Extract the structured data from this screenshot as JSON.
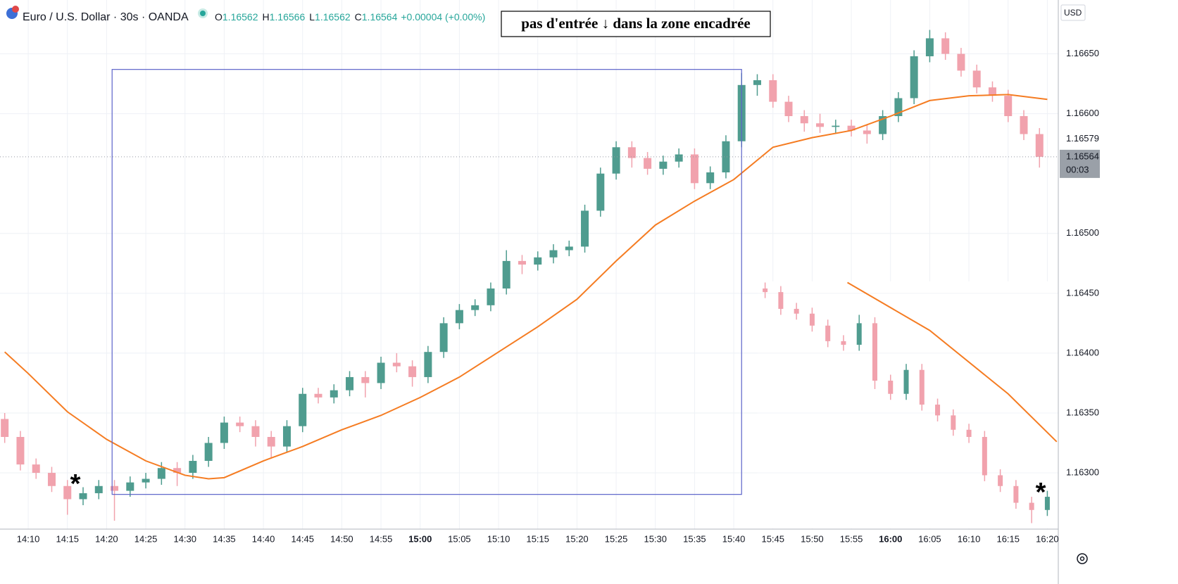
{
  "chart_data": {
    "type": "candlestick",
    "header": {
      "symbol": "Euro / U.S. Dollar · 30s · OANDA",
      "ohlc": [
        {
          "key": "O",
          "value": "1.16562"
        },
        {
          "key": "H",
          "value": "1.16566"
        },
        {
          "key": "L",
          "value": "1.16562"
        },
        {
          "key": "C",
          "value": "1.16564"
        }
      ],
      "change": "+0.00004 (+0.00%)"
    },
    "annotation": "pas d'entrée ↓ dans la zone encadrée",
    "markers": [
      "*",
      "*"
    ],
    "currency": "USD",
    "up_color": "#4f9c8f",
    "down_color": "#f1a2ad",
    "box_color": "#5b63c9",
    "zone": {
      "x": [
        860.7,
        941
      ],
      "y": [
        1.16282,
        1.16637
      ]
    },
    "xlim": [
      846.4,
      981.4
    ],
    "ylim": [
      1.16253,
      1.16695
    ],
    "xticks": [
      {
        "value": 850,
        "label": "14:10"
      },
      {
        "value": 855,
        "label": "14:15"
      },
      {
        "value": 860,
        "label": "14:20"
      },
      {
        "value": 865,
        "label": "14:25"
      },
      {
        "value": 870,
        "label": "14:30"
      },
      {
        "value": 875,
        "label": "14:35"
      },
      {
        "value": 880,
        "label": "14:40"
      },
      {
        "value": 885,
        "label": "14:45"
      },
      {
        "value": 890,
        "label": "14:50"
      },
      {
        "value": 895,
        "label": "14:55"
      },
      {
        "value": 900,
        "label": "15:00"
      },
      {
        "value": 905,
        "label": "15:05"
      },
      {
        "value": 910,
        "label": "15:10"
      },
      {
        "value": 915,
        "label": "15:15"
      },
      {
        "value": 920,
        "label": "15:20"
      },
      {
        "value": 925,
        "label": "15:25"
      },
      {
        "value": 930,
        "label": "15:30"
      },
      {
        "value": 935,
        "label": "15:35"
      },
      {
        "value": 940,
        "label": "15:40"
      },
      {
        "value": 945,
        "label": "15:45"
      },
      {
        "value": 950,
        "label": "15:50"
      },
      {
        "value": 955,
        "label": "15:55"
      },
      {
        "value": 960,
        "label": "16:00"
      },
      {
        "value": 965,
        "label": "16:05"
      },
      {
        "value": 970,
        "label": "16:10"
      },
      {
        "value": 975,
        "label": "16:15"
      },
      {
        "value": 980,
        "label": "16:20"
      }
    ],
    "bold_xticks": [
      10,
      22
    ],
    "yticks": [
      {
        "value": 1.163,
        "label": "1.16300"
      },
      {
        "value": 1.1635,
        "label": "1.16350"
      },
      {
        "value": 1.164,
        "label": "1.16400"
      },
      {
        "value": 1.1645,
        "label": "1.16450"
      },
      {
        "value": 1.165,
        "label": "1.16500"
      },
      {
        "value": 1.166,
        "label": "1.16600"
      },
      {
        "value": 1.1665,
        "label": "1.16650"
      }
    ],
    "grid": true,
    "last_price": {
      "value": 1.16564,
      "label": "1.16564",
      "countdown": "00:03"
    },
    "marker_price": {
      "value": 1.16579,
      "label": "1.16579",
      "color": "#f5a3bd"
    },
    "x": [
      847,
      849,
      851,
      853,
      855,
      857,
      859,
      861,
      863,
      865,
      867,
      869,
      871,
      873,
      875,
      877,
      879,
      881,
      883,
      885,
      887,
      889,
      891,
      893,
      895,
      897,
      899,
      901,
      903,
      905,
      907,
      909,
      911,
      913,
      915,
      917,
      919,
      921,
      923,
      925,
      927,
      929,
      931,
      933,
      935,
      937,
      939,
      941,
      943,
      945,
      947,
      949,
      951,
      953,
      955,
      957,
      959,
      961,
      963,
      965,
      967,
      969,
      971,
      973,
      975,
      977,
      979
    ],
    "open": [
      1.16345,
      1.1633,
      1.16307,
      1.163,
      1.16289,
      1.16278,
      1.16283,
      1.16289,
      1.16285,
      1.16292,
      1.16295,
      1.16304,
      1.163,
      1.1631,
      1.16325,
      1.16342,
      1.16339,
      1.1633,
      1.16322,
      1.16339,
      1.16366,
      1.16363,
      1.16369,
      1.1638,
      1.16375,
      1.16392,
      1.16389,
      1.1638,
      1.16401,
      1.16425,
      1.16436,
      1.1644,
      1.16454,
      1.16477,
      1.16474,
      1.1648,
      1.16486,
      1.16489,
      1.16519,
      1.1655,
      1.16572,
      1.16563,
      1.16554,
      1.1656,
      1.16566,
      1.16542,
      1.16551,
      1.16577,
      1.16624,
      1.16628,
      1.1661,
      1.16598,
      1.16592,
      1.16589,
      1.1659,
      1.16586,
      1.16583,
      1.16598,
      1.16613,
      1.16648,
      1.16663,
      1.1665,
      1.16636,
      1.16622,
      1.16615,
      1.16598,
      1.16583
    ],
    "high": [
      1.1635,
      1.16335,
      1.16312,
      1.16305,
      1.16294,
      1.16288,
      1.16294,
      1.16294,
      1.16297,
      1.163,
      1.16309,
      1.16309,
      1.16315,
      1.1633,
      1.16347,
      1.16347,
      1.16344,
      1.16335,
      1.16344,
      1.16371,
      1.16371,
      1.16374,
      1.16385,
      1.16385,
      1.16397,
      1.164,
      1.16394,
      1.16406,
      1.1643,
      1.16441,
      1.16445,
      1.16459,
      1.16486,
      1.16482,
      1.16485,
      1.16491,
      1.16494,
      1.16524,
      1.16555,
      1.16577,
      1.16577,
      1.16568,
      1.16565,
      1.16571,
      1.16571,
      1.16556,
      1.16582,
      1.16634,
      1.16633,
      1.16633,
      1.16615,
      1.16603,
      1.166,
      1.16595,
      1.16595,
      1.16591,
      1.16603,
      1.16618,
      1.16653,
      1.1667,
      1.16668,
      1.16655,
      1.16641,
      1.16627,
      1.1662,
      1.16603,
      1.16588
    ],
    "low": [
      1.16325,
      1.16302,
      1.16295,
      1.16284,
      1.16265,
      1.16273,
      1.16278,
      1.1626,
      1.1628,
      1.16287,
      1.1629,
      1.16289,
      1.16295,
      1.16305,
      1.1632,
      1.16334,
      1.16322,
      1.16312,
      1.16317,
      1.16334,
      1.16358,
      1.16358,
      1.16364,
      1.16363,
      1.1637,
      1.16384,
      1.16372,
      1.16375,
      1.16396,
      1.1642,
      1.16431,
      1.16435,
      1.16449,
      1.16466,
      1.16469,
      1.16475,
      1.16481,
      1.16484,
      1.16514,
      1.16545,
      1.16555,
      1.16549,
      1.16549,
      1.16555,
      1.16537,
      1.16537,
      1.16546,
      1.16572,
      1.16615,
      1.16605,
      1.16593,
      1.16585,
      1.16584,
      1.16584,
      1.16581,
      1.16575,
      1.16578,
      1.16593,
      1.16608,
      1.16643,
      1.16645,
      1.16631,
      1.16617,
      1.1661,
      1.16593,
      1.16578,
      1.16555
    ],
    "close": [
      1.1633,
      1.16307,
      1.163,
      1.16289,
      1.16278,
      1.16283,
      1.16289,
      1.16285,
      1.16292,
      1.16295,
      1.16304,
      1.163,
      1.1631,
      1.16325,
      1.16342,
      1.16339,
      1.1633,
      1.16322,
      1.16339,
      1.16366,
      1.16363,
      1.16369,
      1.1638,
      1.16375,
      1.16392,
      1.16389,
      1.1638,
      1.16401,
      1.16425,
      1.16436,
      1.1644,
      1.16454,
      1.16477,
      1.16474,
      1.1648,
      1.16486,
      1.16489,
      1.16519,
      1.1655,
      1.16572,
      1.16563,
      1.16554,
      1.1656,
      1.16566,
      1.16542,
      1.16551,
      1.16577,
      1.16624,
      1.16628,
      1.1661,
      1.16598,
      1.16592,
      1.16589,
      1.1659,
      1.16586,
      1.16583,
      1.16598,
      1.16613,
      1.16648,
      1.16663,
      1.1665,
      1.16636,
      1.16622,
      1.16615,
      1.16598,
      1.16583,
      1.16564
    ],
    "ma": {
      "color": "#f57c22",
      "x": [
        847,
        850,
        855,
        860,
        865,
        870,
        873,
        875,
        880,
        885,
        890,
        895,
        900,
        905,
        910,
        915,
        920,
        925,
        930,
        935,
        940,
        945,
        950,
        955,
        960,
        965,
        970,
        975,
        980
      ],
      "values": [
        1.16401,
        1.16383,
        1.16351,
        1.16328,
        1.1631,
        1.16298,
        1.16295,
        1.16296,
        1.1631,
        1.16322,
        1.16336,
        1.16348,
        1.16363,
        1.1638,
        1.16401,
        1.16422,
        1.16445,
        1.16477,
        1.16507,
        1.16527,
        1.16545,
        1.16572,
        1.1658,
        1.16586,
        1.16598,
        1.16611,
        1.16615,
        1.16616,
        1.16612
      ]
    },
    "inset": {
      "xlim": [
        943,
        981.4
      ],
      "top": 1.1646,
      "x": [
        944,
        946,
        948,
        950,
        952,
        954,
        956,
        958,
        960,
        962,
        964,
        966,
        968,
        970,
        972,
        974,
        976,
        978,
        980
      ],
      "open": [
        1.16454,
        1.16451,
        1.16437,
        1.16433,
        1.16423,
        1.1641,
        1.16407,
        1.16425,
        1.16377,
        1.16366,
        1.16386,
        1.16357,
        1.16348,
        1.16336,
        1.1633,
        1.16298,
        1.16289,
        1.16275,
        1.16269
      ],
      "high": [
        1.16459,
        1.16456,
        1.16442,
        1.16438,
        1.16428,
        1.16415,
        1.16432,
        1.1643,
        1.16382,
        1.16391,
        1.16391,
        1.16362,
        1.16353,
        1.16341,
        1.16335,
        1.16303,
        1.16294,
        1.1628,
        1.16285
      ],
      "low": [
        1.16446,
        1.16432,
        1.16428,
        1.16418,
        1.16405,
        1.16402,
        1.16402,
        1.1637,
        1.16361,
        1.16361,
        1.16352,
        1.16343,
        1.16331,
        1.16325,
        1.16293,
        1.16284,
        1.1627,
        1.16258,
        1.16264
      ],
      "close": [
        1.16451,
        1.16437,
        1.16433,
        1.16423,
        1.1641,
        1.16407,
        1.16425,
        1.16377,
        1.16366,
        1.16386,
        1.16357,
        1.16348,
        1.16336,
        1.1633,
        1.16298,
        1.16289,
        1.16275,
        1.16269,
        1.1628
      ],
      "ma": {
        "x": [
          954.5,
          965,
          975,
          981.2
        ],
        "values": [
          1.16459,
          1.16419,
          1.16366,
          1.16326
        ]
      }
    }
  }
}
